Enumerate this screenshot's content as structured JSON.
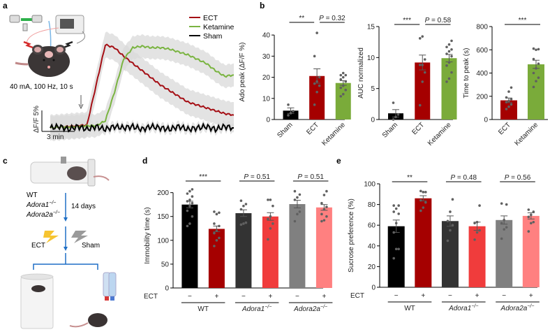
{
  "panel_labels": {
    "a": "a",
    "b": "b",
    "c": "c",
    "d": "d",
    "e": "e"
  },
  "colors": {
    "ect": "#a50f15",
    "ketamine": "#7aab3a",
    "sham": "#000000",
    "wt_minus": "#000000",
    "wt_plus": "#a50000",
    "a1_minus": "#333333",
    "a1_plus": "#f03c3c",
    "a2a_minus": "#808080",
    "a2a_plus": "#ff8080",
    "dots": "#606060",
    "sem_band": "#d9d9d9"
  },
  "panel_a": {
    "stim_text": "40 mA, 100 Hz, 10 s",
    "scale_y": "ΔF/F 5%",
    "scale_x": "3 min",
    "legend": [
      "ECT",
      "Ketamine",
      "Sham"
    ]
  },
  "panel_c": {
    "genotypes": [
      "WT",
      "Adora1",
      "Adora2a"
    ],
    "genotype_sup": "−/−",
    "duration": "14 days",
    "treatments": [
      "ECT",
      "Sham"
    ]
  },
  "chart_data": [
    {
      "id": "a",
      "type": "line",
      "title": "",
      "xlabel": "time",
      "ylabel": "ΔF/F",
      "x": [
        0,
        1,
        2,
        3,
        4,
        5,
        6,
        7,
        8,
        9,
        10,
        11,
        12,
        13,
        14,
        15,
        16,
        17,
        18,
        19,
        20
      ],
      "series": [
        {
          "name": "ECT",
          "values": [
            0,
            0.5,
            1,
            1.5,
            2,
            30,
            58,
            56,
            50,
            45,
            40,
            35,
            30,
            26,
            22,
            18,
            16,
            14,
            12,
            10,
            9
          ]
        },
        {
          "name": "Ketamine",
          "values": [
            0,
            0.5,
            0.7,
            1,
            1.5,
            1.5,
            5,
            25,
            48,
            56,
            57,
            56,
            56,
            55,
            53,
            51,
            48,
            45,
            40,
            36,
            37
          ]
        },
        {
          "name": "Sham",
          "values": [
            0,
            1,
            -1,
            1,
            -1,
            1,
            -1,
            1,
            0,
            1,
            -1,
            1,
            0,
            -1,
            1,
            -1,
            0,
            1,
            -1,
            1,
            0
          ]
        }
      ],
      "annotations": [
        "stimulus arrow"
      ]
    },
    {
      "id": "b1",
      "type": "bar",
      "categories": [
        "Sham",
        "ECT",
        "Ketamine"
      ],
      "values": [
        4.2,
        20.6,
        17.3
      ],
      "sem": [
        1.3,
        3.4,
        1.1
      ],
      "points": [
        [
          2,
          3,
          4,
          7
        ],
        [
          7,
          13,
          16,
          17,
          18,
          20,
          30,
          41
        ],
        [
          11,
          12,
          14,
          15,
          16,
          18,
          19,
          20,
          21,
          21,
          22
        ]
      ],
      "ylabel": "Ado peak (ΔF/F %)",
      "yticks": [
        0,
        10,
        20,
        30,
        40
      ],
      "ylim": [
        0,
        45
      ],
      "significance": [
        {
          "pair": [
            0,
            1
          ],
          "label": "**"
        },
        {
          "pair": [
            1,
            2
          ],
          "label": "P = 0.32"
        }
      ]
    },
    {
      "id": "b2",
      "type": "bar",
      "categories": [
        "Sham",
        "ECT",
        "Ketamine"
      ],
      "values": [
        1.0,
        9.2,
        9.9
      ],
      "sem": [
        0.6,
        1.2,
        0.6
      ],
      "points": [
        [
          0,
          0.4,
          0.8,
          2.7
        ],
        [
          2.3,
          6.1,
          7.6,
          8.8,
          8.8,
          9.7,
          13.1,
          13.4
        ],
        [
          6.1,
          6.6,
          7.6,
          8.7,
          9.2,
          10.2,
          10.6,
          11,
          11.3,
          11.7,
          12.1,
          12.7
        ]
      ],
      "ylabel": "AUC normalized",
      "yticks": [
        0,
        5,
        10,
        15
      ],
      "ylim": [
        0,
        15
      ],
      "significance": [
        {
          "pair": [
            0,
            1
          ],
          "label": "***"
        },
        {
          "pair": [
            1,
            2
          ],
          "label": "P = 0.58"
        }
      ]
    },
    {
      "id": "b3",
      "type": "bar",
      "categories": [
        "ECT",
        "Ketamine"
      ],
      "values": [
        165,
        475
      ],
      "sem": [
        20,
        35
      ],
      "points": [
        [
          90,
          110,
          130,
          150,
          160,
          175,
          190,
          240,
          275
        ],
        [
          280,
          330,
          360,
          400,
          440,
          480,
          520,
          600,
          605,
          610
        ]
      ],
      "ylabel": "Time to peak (s)",
      "yticks": [
        0,
        200,
        400,
        600,
        800
      ],
      "ylim": [
        0,
        800
      ],
      "significance": [
        {
          "pair": [
            0,
            1
          ],
          "label": "***"
        }
      ]
    },
    {
      "id": "d",
      "type": "bar",
      "categories": [
        "WT −",
        "WT +",
        "Adora1 −",
        "Adora1 +",
        "Adora2a −",
        "Adora2a +"
      ],
      "ect": [
        "−",
        "+",
        "−",
        "+",
        "−",
        "+"
      ],
      "groups": [
        "WT",
        "Adora1−/−",
        "Adora2a−/−"
      ],
      "values": [
        175,
        124,
        157,
        150,
        176,
        169
      ],
      "sem": [
        7,
        6,
        7,
        8,
        8,
        6
      ],
      "points": [
        [
          130,
          135,
          150,
          162,
          172,
          178,
          182,
          185,
          192,
          198,
          203,
          207
        ],
        [
          88,
          100,
          105,
          115,
          120,
          130,
          135,
          155,
          158,
          160
        ],
        [
          133,
          135,
          137,
          165,
          172,
          176,
          183
        ],
        [
          102,
          125,
          135,
          145,
          150,
          172,
          185,
          185
        ],
        [
          140,
          155,
          160,
          185,
          190,
          196,
          203
        ],
        [
          140,
          142,
          150,
          155,
          165,
          170,
          178,
          195,
          203
        ]
      ],
      "ylabel": "Immobility time (s)",
      "xlabel_row": "ECT",
      "yticks": [
        0,
        50,
        100,
        150,
        200
      ],
      "ylim": [
        0,
        220
      ],
      "significance": [
        {
          "pair": [
            0,
            1
          ],
          "label": "***"
        },
        {
          "pair": [
            2,
            3
          ],
          "label": "P = 0.51"
        },
        {
          "pair": [
            4,
            5
          ],
          "label": "P = 0.51"
        }
      ]
    },
    {
      "id": "e",
      "type": "bar",
      "categories": [
        "WT −",
        "WT +",
        "Adora1 −",
        "Adora1 +",
        "Adora2a −",
        "Adora2a +"
      ],
      "ect": [
        "−",
        "+",
        "−",
        "+",
        "−",
        "+"
      ],
      "groups": [
        "WT",
        "Adora1−/−",
        "Adora2a−/−"
      ],
      "values": [
        59,
        86,
        64,
        59,
        65,
        69
      ],
      "sem": [
        6,
        2.5,
        5,
        4,
        4,
        3
      ],
      "points": [
        [
          28,
          37,
          37,
          53,
          62,
          71,
          73,
          76,
          79,
          79
        ],
        [
          74,
          77,
          82,
          84,
          92,
          92,
          93
        ],
        [
          45,
          55,
          60,
          64,
          73,
          85
        ],
        [
          46,
          53,
          55,
          62,
          63,
          79
        ],
        [
          47,
          56,
          58,
          62,
          65,
          80,
          81
        ],
        [
          54,
          62,
          63,
          68,
          70,
          73,
          75
        ]
      ],
      "ylabel": "Sucrose preference (%)",
      "xlabel_row": "ECT",
      "yticks": [
        0,
        20,
        40,
        60,
        80,
        100
      ],
      "ylim": [
        0,
        100
      ],
      "significance": [
        {
          "pair": [
            0,
            1
          ],
          "label": "**"
        },
        {
          "pair": [
            2,
            3
          ],
          "label": "P = 0.48"
        },
        {
          "pair": [
            4,
            5
          ],
          "label": "P = 0.56"
        }
      ]
    }
  ]
}
